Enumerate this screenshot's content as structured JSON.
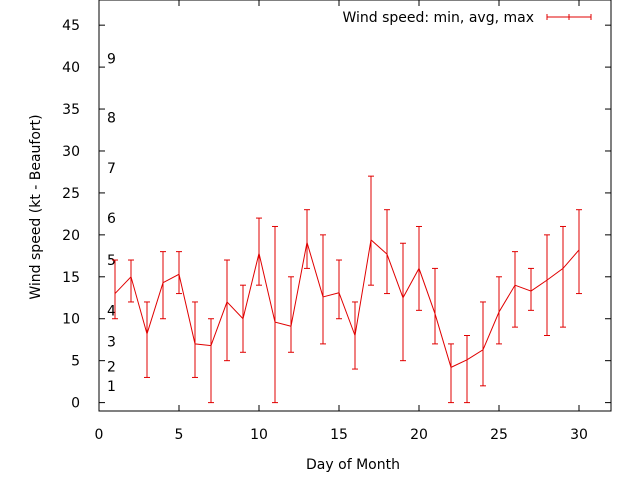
{
  "chart_data": {
    "type": "line",
    "xlabel": "Day of Month",
    "ylabel": "Wind speed (kt - Beaufort)",
    "xlim": [
      0,
      32
    ],
    "ylim": [
      -1,
      48
    ],
    "xticks": [
      0,
      5,
      10,
      15,
      20,
      25,
      30
    ],
    "yticks": [
      0,
      5,
      10,
      15,
      20,
      25,
      30,
      35,
      40,
      45
    ],
    "grid": false,
    "legend_position": "top-right",
    "beaufort_scale": [
      {
        "label": "1",
        "value": 2
      },
      {
        "label": "2",
        "value": 4.3
      },
      {
        "label": "3",
        "value": 7.3
      },
      {
        "label": "4",
        "value": 11
      },
      {
        "label": "5",
        "value": 17
      },
      {
        "label": "6",
        "value": 22
      },
      {
        "label": "7",
        "value": 28
      },
      {
        "label": "8",
        "value": 34
      },
      {
        "label": "9",
        "value": 41
      }
    ],
    "series": [
      {
        "name": "Wind speed: min, avg, max",
        "color": "#e00000",
        "x": [
          1,
          2,
          3,
          4,
          5,
          6,
          7,
          8,
          9,
          10,
          11,
          12,
          13,
          14,
          15,
          16,
          17,
          18,
          19,
          20,
          21,
          22,
          23,
          24,
          25,
          26,
          27,
          28,
          29,
          30
        ],
        "avg": [
          13,
          15,
          8.2,
          14.3,
          15.3,
          7,
          6.8,
          12,
          10,
          17.8,
          9.6,
          9.1,
          19.1,
          12.6,
          13.1,
          8,
          19.4,
          17.7,
          12.5,
          16,
          10.6,
          4.2,
          5.1,
          6.3,
          10.8,
          14,
          13.3,
          14.6,
          16,
          18.2
        ],
        "min": [
          10,
          12,
          3,
          10,
          13,
          3,
          0,
          5,
          6,
          14,
          0,
          6,
          16,
          7,
          10,
          4,
          14,
          13,
          5,
          11,
          7,
          0,
          0,
          2,
          7,
          9,
          11,
          8,
          9,
          13
        ],
        "max": [
          17,
          17,
          12,
          18,
          18,
          12,
          10,
          17,
          14,
          22,
          21,
          15,
          23,
          20,
          17,
          12,
          27,
          23,
          19,
          21,
          16,
          7,
          8,
          12,
          15,
          18,
          16,
          20,
          21,
          23
        ]
      }
    ]
  }
}
